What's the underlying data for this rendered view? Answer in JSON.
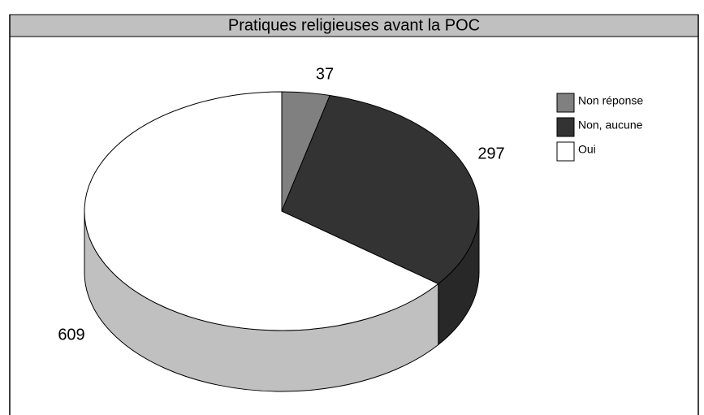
{
  "chart_data": {
    "type": "pie3d",
    "title": "Pratiques religieuses avant la POC",
    "categories": [
      "Non réponse",
      "Non, aucune",
      "Oui"
    ],
    "values": [
      37,
      297,
      609
    ],
    "colors": [
      "#808080",
      "#333333",
      "#ffffff"
    ]
  }
}
